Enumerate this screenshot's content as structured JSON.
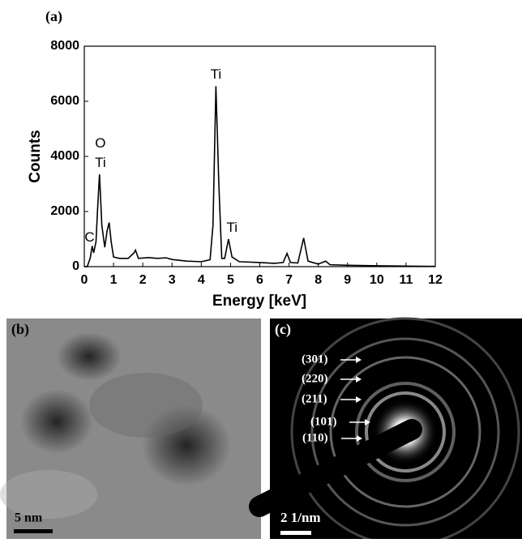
{
  "chart_data": {
    "type": "line",
    "panel_label": "(a)",
    "xlabel": "Energy [keV]",
    "ylabel": "Counts",
    "color": "#000000",
    "x": [
      0,
      0.1,
      0.2,
      0.27,
      0.32,
      0.4,
      0.45,
      0.52,
      0.6,
      0.7,
      0.78,
      0.85,
      0.92,
      1.0,
      1.2,
      1.5,
      1.7,
      1.75,
      1.85,
      2.2,
      2.5,
      2.8,
      3.0,
      3.5,
      4.0,
      4.3,
      4.4,
      4.5,
      4.6,
      4.7,
      4.8,
      4.93,
      5.05,
      5.3,
      6.0,
      6.5,
      6.8,
      6.93,
      7.05,
      7.3,
      7.5,
      7.65,
      8.0,
      8.25,
      8.4,
      9,
      10,
      11,
      12
    ],
    "values": [
      0,
      0,
      300,
      750,
      500,
      900,
      2000,
      3350,
      1500,
      700,
      1300,
      1600,
      900,
      350,
      300,
      300,
      500,
      600,
      300,
      330,
      300,
      320,
      260,
      200,
      180,
      250,
      1500,
      6550,
      3000,
      300,
      300,
      1000,
      350,
      180,
      150,
      120,
      150,
      480,
      150,
      130,
      1040,
      200,
      90,
      200,
      70,
      50,
      30,
      20,
      10
    ],
    "xlim": [
      0,
      12
    ],
    "xticks": [
      0,
      1,
      2,
      3,
      4,
      5,
      6,
      7,
      8,
      9,
      10,
      11,
      12
    ],
    "ylim": [
      0,
      8000
    ],
    "yticks": [
      0,
      2000,
      4000,
      6000,
      8000
    ],
    "grid": false,
    "annotations": [
      {
        "text": "C",
        "x": 0.18,
        "y": 1050
      },
      {
        "text": "O",
        "x": 0.55,
        "y": 4450
      },
      {
        "text": "Ti",
        "x": 0.55,
        "y": 3750
      },
      {
        "text": "Ti",
        "x": 4.5,
        "y": 6950
      },
      {
        "text": "Ti",
        "x": 5.05,
        "y": 1400
      }
    ]
  },
  "panel_b": {
    "label": "(b)",
    "scale_bar": "5 nm"
  },
  "panel_c": {
    "label": "(c)",
    "scale_bar": "2 1/nm",
    "rings": [
      "(301)",
      "(220)",
      "(211)",
      "(101)",
      "(110)"
    ]
  }
}
